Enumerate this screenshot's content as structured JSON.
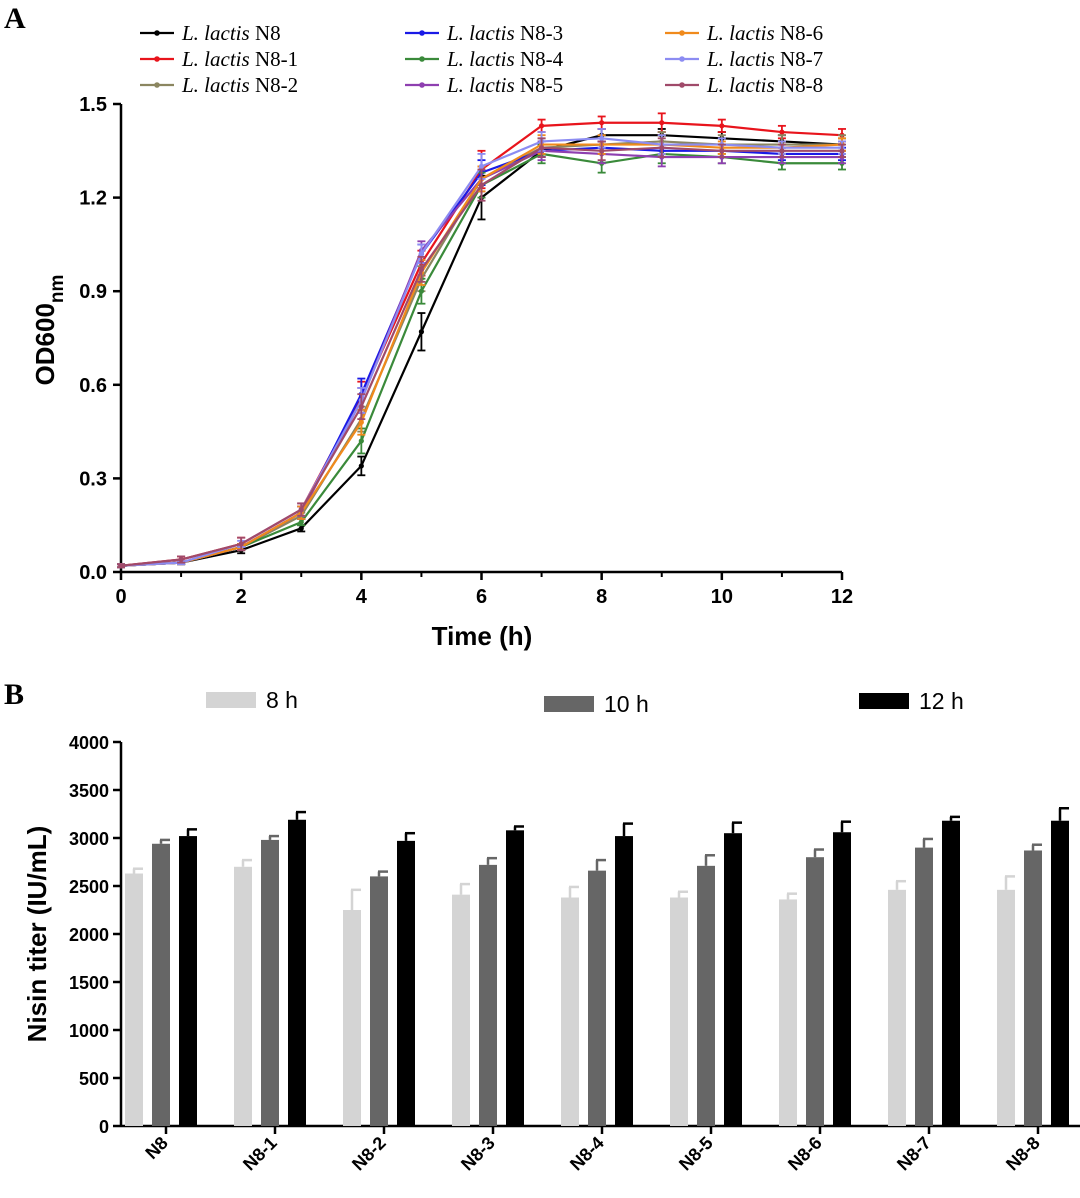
{
  "chart_data": [
    {
      "panel": "A",
      "type": "line",
      "xlabel": "Time (h)",
      "ylabel": "OD600",
      "ylabel_sub": "nm",
      "xlim": [
        0,
        12
      ],
      "ylim": [
        0,
        1.5
      ],
      "xticks": [
        0,
        2,
        4,
        6,
        8,
        10,
        12
      ],
      "yticks": [
        "0.0",
        "0.3",
        "0.6",
        "0.9",
        "1.2",
        "1.5"
      ],
      "x": [
        0,
        1,
        2,
        3,
        4,
        5,
        6,
        7,
        8,
        9,
        10,
        11,
        12
      ],
      "series": [
        {
          "name_italic": "L. lactis",
          "name_suffix": "N8",
          "color": "#000000",
          "values": [
            0.02,
            0.03,
            0.07,
            0.14,
            0.34,
            0.77,
            1.2,
            1.35,
            1.4,
            1.4,
            1.39,
            1.38,
            1.37
          ],
          "err": [
            0.005,
            0.005,
            0.01,
            0.01,
            0.03,
            0.06,
            0.07,
            0.02,
            0.02,
            0.02,
            0.02,
            0.02,
            0.02
          ]
        },
        {
          "name_italic": "L. lactis",
          "name_suffix": "N8-1",
          "color": "#e8141c",
          "values": [
            0.02,
            0.04,
            0.09,
            0.2,
            0.56,
            0.99,
            1.29,
            1.43,
            1.44,
            1.44,
            1.43,
            1.41,
            1.4
          ],
          "err": [
            0.005,
            0.01,
            0.02,
            0.02,
            0.05,
            0.04,
            0.06,
            0.02,
            0.02,
            0.03,
            0.02,
            0.02,
            0.02
          ]
        },
        {
          "name_italic": "L. lactis",
          "name_suffix": "N8-2",
          "color": "#8b8660",
          "values": [
            0.02,
            0.03,
            0.08,
            0.18,
            0.49,
            0.94,
            1.26,
            1.36,
            1.37,
            1.38,
            1.37,
            1.37,
            1.37
          ],
          "err": [
            0.005,
            0.005,
            0.01,
            0.01,
            0.04,
            0.04,
            0.04,
            0.03,
            0.03,
            0.03,
            0.03,
            0.03,
            0.03
          ]
        },
        {
          "name_italic": "L. lactis",
          "name_suffix": "N8-3",
          "color": "#1a1ae6",
          "values": [
            0.02,
            0.03,
            0.08,
            0.19,
            0.57,
            1.02,
            1.28,
            1.35,
            1.36,
            1.35,
            1.35,
            1.34,
            1.34
          ],
          "err": [
            0.005,
            0.005,
            0.01,
            0.02,
            0.05,
            0.03,
            0.04,
            0.02,
            0.02,
            0.02,
            0.02,
            0.02,
            0.02
          ]
        },
        {
          "name_italic": "L. lactis",
          "name_suffix": "N8-4",
          "color": "#3a8a3a",
          "values": [
            0.02,
            0.03,
            0.08,
            0.16,
            0.42,
            0.9,
            1.24,
            1.34,
            1.31,
            1.34,
            1.33,
            1.31,
            1.31
          ],
          "err": [
            0.005,
            0.005,
            0.01,
            0.01,
            0.04,
            0.04,
            0.04,
            0.03,
            0.03,
            0.03,
            0.02,
            0.02,
            0.02
          ]
        },
        {
          "name_italic": "L. lactis",
          "name_suffix": "N8-5",
          "color": "#8e3fb0",
          "values": [
            0.02,
            0.03,
            0.08,
            0.19,
            0.55,
            1.03,
            1.26,
            1.35,
            1.34,
            1.33,
            1.33,
            1.33,
            1.33
          ],
          "err": [
            0.005,
            0.005,
            0.01,
            0.02,
            0.04,
            0.03,
            0.04,
            0.03,
            0.03,
            0.03,
            0.02,
            0.02,
            0.02
          ]
        },
        {
          "name_italic": "L. lactis",
          "name_suffix": "N8-6",
          "color": "#f08a1c",
          "values": [
            0.02,
            0.03,
            0.08,
            0.19,
            0.48,
            0.96,
            1.26,
            1.37,
            1.37,
            1.37,
            1.36,
            1.36,
            1.37
          ],
          "err": [
            0.005,
            0.005,
            0.01,
            0.02,
            0.04,
            0.04,
            0.04,
            0.03,
            0.03,
            0.03,
            0.02,
            0.02,
            0.02
          ]
        },
        {
          "name_italic": "L. lactis",
          "name_suffix": "N8-7",
          "color": "#8c8cf2",
          "values": [
            0.02,
            0.03,
            0.09,
            0.2,
            0.55,
            1.02,
            1.3,
            1.38,
            1.39,
            1.37,
            1.37,
            1.36,
            1.36
          ],
          "err": [
            0.005,
            0.005,
            0.01,
            0.02,
            0.04,
            0.03,
            0.04,
            0.03,
            0.03,
            0.03,
            0.02,
            0.02,
            0.02
          ]
        },
        {
          "name_italic": "L. lactis",
          "name_suffix": "N8-8",
          "color": "#a04a6a",
          "values": [
            0.02,
            0.04,
            0.09,
            0.2,
            0.53,
            0.97,
            1.24,
            1.36,
            1.35,
            1.36,
            1.35,
            1.35,
            1.35
          ],
          "err": [
            0.005,
            0.01,
            0.02,
            0.02,
            0.04,
            0.04,
            0.05,
            0.03,
            0.03,
            0.03,
            0.02,
            0.02,
            0.02
          ]
        }
      ]
    },
    {
      "panel": "B",
      "type": "bar",
      "ylabel": "Nisin titer (IU/mL)",
      "ylim": [
        0,
        4000
      ],
      "yticks": [
        "0",
        "500",
        "1000",
        "1500",
        "2000",
        "2500",
        "3000",
        "3500",
        "4000"
      ],
      "categories": [
        "N8",
        "N8-1",
        "N8-2",
        "N8-3",
        "N8-4",
        "N8-5",
        "N8-6",
        "N8-7",
        "N8-8"
      ],
      "series": [
        {
          "name": "8 h",
          "color": "#d4d4d4",
          "values": [
            2630,
            2700,
            2250,
            2410,
            2380,
            2380,
            2360,
            2460,
            2460
          ],
          "err": [
            50,
            70,
            210,
            110,
            110,
            60,
            60,
            90,
            140
          ]
        },
        {
          "name": "10 h",
          "color": "#666666",
          "values": [
            2940,
            2980,
            2600,
            2720,
            2660,
            2710,
            2800,
            2900,
            2870
          ],
          "err": [
            40,
            40,
            50,
            70,
            110,
            110,
            80,
            90,
            60
          ]
        },
        {
          "name": "12 h",
          "color": "#000000",
          "values": [
            3020,
            3190,
            2970,
            3080,
            3020,
            3050,
            3060,
            3180,
            3180
          ],
          "err": [
            70,
            80,
            80,
            40,
            130,
            110,
            110,
            40,
            130
          ]
        }
      ]
    }
  ]
}
